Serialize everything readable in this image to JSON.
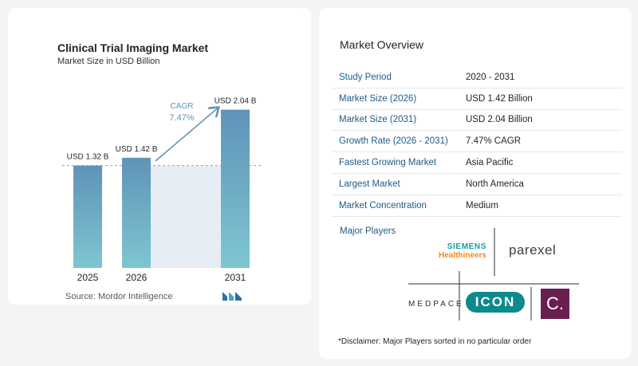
{
  "chart_data": {
    "type": "bar",
    "title": "Clinical Trial Imaging Market",
    "subtitle": "Market Size in USD Billion",
    "categories": [
      "2025",
      "2026",
      "2031"
    ],
    "values": [
      1.32,
      1.42,
      2.04
    ],
    "data_labels": [
      "USD 1.32 B",
      "USD 1.42 B",
      "USD 2.04 B"
    ],
    "cagr_label": "CAGR",
    "cagr_value": "7.47%",
    "ylim": [
      0,
      2.2
    ],
    "grid": false,
    "colors": {
      "bar_top": "#5f93b8",
      "bar_bottom": "#7fc6d1",
      "band": "#e6edf4",
      "arrow": "#5f93b8",
      "cagr_text": "#5f93b8"
    }
  },
  "source": "Source:  Mordor Intelligence",
  "overview": {
    "title": "Market Overview",
    "rows": [
      {
        "label": "Study Period",
        "value": "2020 - 2031"
      },
      {
        "label": "Market Size (2026)",
        "value": "USD 1.42 Billion"
      },
      {
        "label": "Market Size (2031)",
        "value": "USD 2.04 Billion"
      },
      {
        "label": "Growth Rate (2026 - 2031)",
        "value": "7.47% CAGR"
      },
      {
        "label": "Fastest Growing Market",
        "value": "Asia Pacific"
      },
      {
        "label": "Largest Market",
        "value": "North America"
      },
      {
        "label": "Market Concentration",
        "value": "Medium"
      }
    ]
  },
  "major_players": {
    "title": "Major Players",
    "logos": {
      "siemens_line1": "SIEMENS",
      "siemens_line2": "Healthineers",
      "parexel": "parexel",
      "medpace": "MEDPACE",
      "icon": "ICON",
      "c_logo": "C."
    }
  },
  "disclaimer": "*Disclaimer: Major Players sorted in no particular order"
}
